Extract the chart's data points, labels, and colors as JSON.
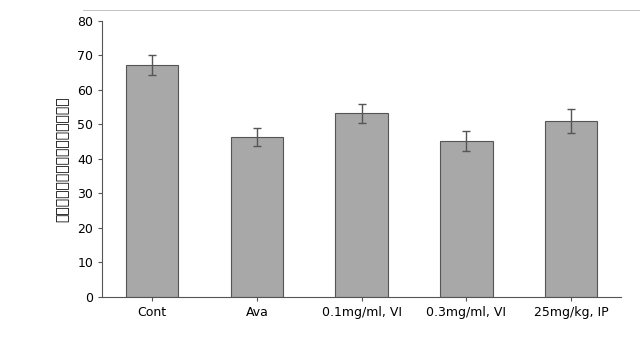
{
  "categories": [
    "Cont",
    "Ava",
    "0.1mg/ml, VI",
    "0.3mg/ml, VI",
    "25mg/kg, IP"
  ],
  "values": [
    67.2,
    46.3,
    53.2,
    45.2,
    51.0
  ],
  "errors": [
    2.8,
    2.5,
    2.8,
    2.8,
    3.5
  ],
  "bar_color": "#a8a8a8",
  "bar_edgecolor": "#555555",
  "ylabel": "荧光強度（バックグラウンド比）",
  "ylim": [
    0,
    80
  ],
  "yticks": [
    0,
    10,
    20,
    30,
    40,
    50,
    60,
    70,
    80
  ],
  "bar_width": 0.5,
  "figsize": [
    6.4,
    3.49
  ],
  "dpi": 100,
  "ylabel_fontsize": 10,
  "tick_fontsize": 9,
  "xlabel_fontsize": 9,
  "errorbar_color": "#555555",
  "errorbar_linewidth": 1.0,
  "errorbar_capsize": 3,
  "background_color": "#ffffff",
  "spine_color": "#555555",
  "top_line_color": "#aaaaaa"
}
